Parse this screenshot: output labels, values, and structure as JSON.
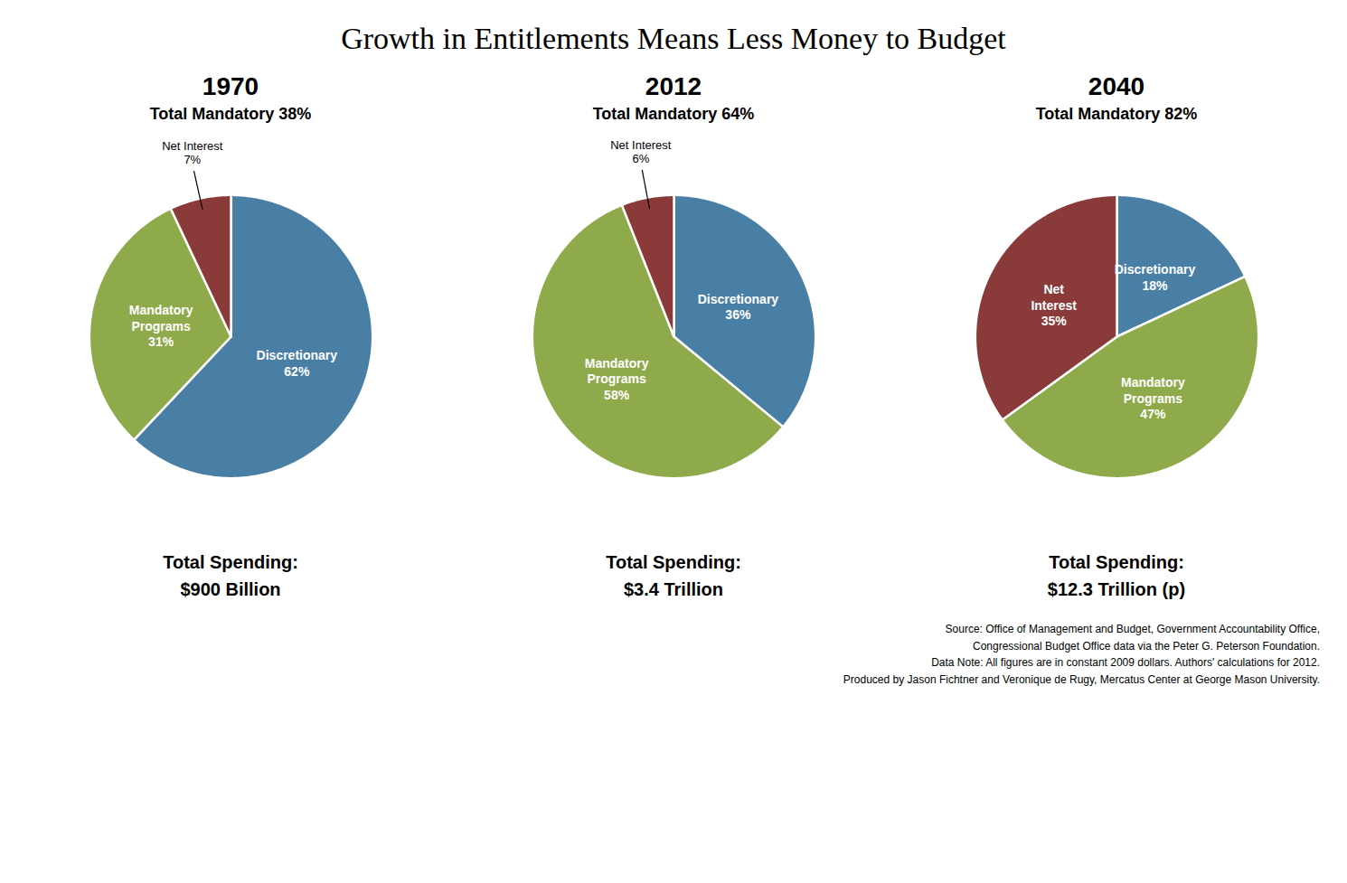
{
  "title": "Growth in Entitlements Means Less Money to Budget",
  "caption": "Source: Office of Management and Budget, Government Accountability Office,\nCongressional Budget Office data via the Peter G. Peterson Foundation.\nData Note: All figures are in constant 2009 dollars. Authors' calculations for 2012.\nProduced by Jason Fichtner and Veronique de Rugy, Mercatus Center at George Mason University.",
  "chart_data": [
    {
      "type": "pie",
      "title": "1970",
      "subtitle": "Total Mandatory 38%",
      "categories": [
        "Discretionary",
        "Mandatory Programs",
        "Net Interest"
      ],
      "values": [
        62,
        31,
        7
      ],
      "value_labels": [
        "62%",
        "31%",
        "7%"
      ],
      "colors": [
        "#4a7fa5",
        "#8faa4b",
        "#8b3a3a"
      ],
      "data_labels": true,
      "annotations": [
        "Total Spending:",
        "$900 Billion"
      ]
    },
    {
      "type": "pie",
      "title": "2012",
      "subtitle": "Total Mandatory 64%",
      "categories": [
        "Discretionary",
        "Mandatory Programs",
        "Net Interest"
      ],
      "values": [
        36,
        58,
        6
      ],
      "value_labels": [
        "36%",
        "58%",
        "6%"
      ],
      "colors": [
        "#4a7fa5",
        "#8faa4b",
        "#8b3a3a"
      ],
      "data_labels": true,
      "annotations": [
        "Total Spending:",
        "$3.4 Trillion"
      ]
    },
    {
      "type": "pie",
      "title": "2040",
      "subtitle": "Total Mandatory 82%",
      "categories": [
        "Discretionary",
        "Mandatory Programs",
        "Net Interest"
      ],
      "values": [
        18,
        47,
        35
      ],
      "value_labels": [
        "18%",
        "47%",
        "35%"
      ],
      "colors": [
        "#4a7fa5",
        "#8faa4b",
        "#8b3a3a"
      ],
      "data_labels": true,
      "annotations": [
        "Total Spending:",
        "$12.3 Trillion (p)"
      ]
    }
  ]
}
